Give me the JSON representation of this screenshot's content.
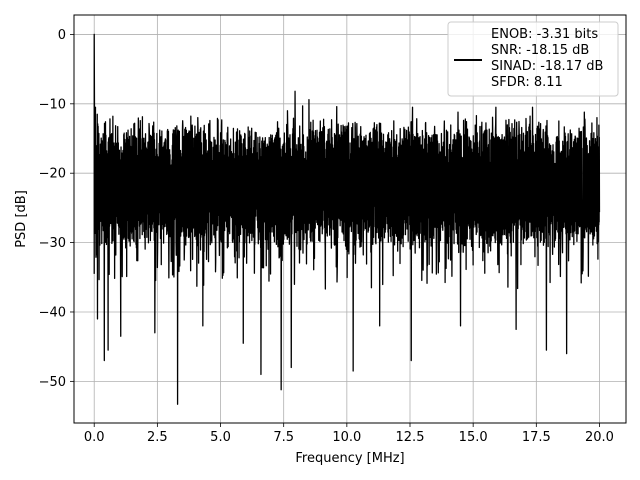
{
  "chart_data": {
    "type": "line",
    "xlabel": "Frequency [MHz]",
    "ylabel": "PSD [dB]",
    "xlim": [
      -0.8,
      21.05
    ],
    "ylim": [
      -56,
      2.8
    ],
    "xticks": [
      0.0,
      2.5,
      5.0,
      7.5,
      10.0,
      12.5,
      15.0,
      17.5,
      20.0
    ],
    "xtick_labels": [
      "0.0",
      "2.5",
      "5.0",
      "7.5",
      "10.0",
      "12.5",
      "15.0",
      "17.5",
      "20.0"
    ],
    "yticks": [
      0,
      -10,
      -20,
      -30,
      -40,
      -50
    ],
    "ytick_labels": [
      "0",
      "−10",
      "−20",
      "−30",
      "−40",
      "−50"
    ],
    "grid": true,
    "legend_position": "top-right",
    "legend_lines": [
      "ENOB: -3.31 bits",
      "SNR: -18.15 dB",
      "SINAD: -18.17 dB",
      "SFDR: 8.11"
    ],
    "line_color": "#000000",
    "series": [
      {
        "x_range": [
          0,
          20
        ],
        "band_top": [
          -15,
          -13
        ],
        "band_bottom": [
          -31,
          -29
        ],
        "spike_peaks": [
          [
            0.0,
            0.0
          ],
          [
            0.05,
            -10.5
          ],
          [
            0.12,
            -11.5
          ],
          [
            1.6,
            -12.8
          ],
          [
            4.1,
            -12.0
          ],
          [
            7.65,
            -11.0
          ],
          [
            7.95,
            -8.2
          ],
          [
            8.25,
            -10.3
          ],
          [
            8.5,
            -9.4
          ],
          [
            9.6,
            -10.4
          ],
          [
            12.6,
            -10.5
          ],
          [
            14.4,
            -11.2
          ],
          [
            15.9,
            -10.5
          ],
          [
            17.35,
            -10.5
          ],
          [
            19.4,
            -11.2
          ],
          [
            19.9,
            -12.0
          ]
        ],
        "spike_troughs": [
          [
            0.13,
            -41.0
          ],
          [
            0.4,
            -47.0
          ],
          [
            0.55,
            -45.5
          ],
          [
            1.05,
            -43.5
          ],
          [
            2.4,
            -43.0
          ],
          [
            3.3,
            -53.3
          ],
          [
            4.3,
            -42.0
          ],
          [
            5.9,
            -44.5
          ],
          [
            6.6,
            -49.0
          ],
          [
            7.4,
            -51.2
          ],
          [
            7.8,
            -48.0
          ],
          [
            10.25,
            -48.5
          ],
          [
            11.3,
            -42.0
          ],
          [
            12.55,
            -47.0
          ],
          [
            14.5,
            -42.0
          ],
          [
            16.7,
            -42.5
          ],
          [
            17.9,
            -45.5
          ],
          [
            18.7,
            -46.0
          ]
        ]
      }
    ]
  }
}
